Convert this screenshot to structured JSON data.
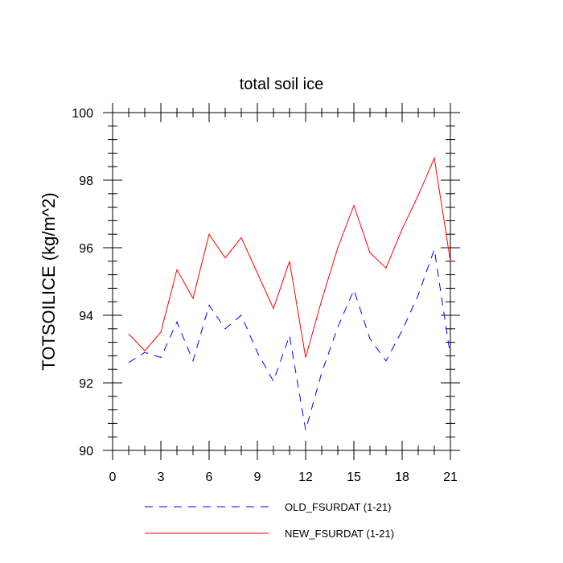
{
  "chart_data": {
    "type": "line",
    "title": "total soil ice",
    "xlabel": "",
    "ylabel": "TOTSOILICE  (kg/m^2)",
    "xlim": [
      0,
      21
    ],
    "ylim": [
      90,
      100
    ],
    "x_ticks": [
      0,
      3,
      6,
      9,
      12,
      15,
      18,
      21
    ],
    "y_ticks": [
      90,
      92,
      94,
      96,
      98,
      100
    ],
    "grid": false,
    "legend_position": "bottom",
    "x": [
      1,
      2,
      3,
      4,
      5,
      6,
      7,
      8,
      9,
      10,
      11,
      12,
      13,
      14,
      15,
      16,
      17,
      18,
      19,
      20,
      21
    ],
    "series": [
      {
        "name": "OLD_FSURDAT (1-21)",
        "color": "#0000ff",
        "style": "dashed",
        "values": [
          92.6,
          92.9,
          92.75,
          93.8,
          92.65,
          94.3,
          93.6,
          94.0,
          92.9,
          92.05,
          93.4,
          90.6,
          92.3,
          93.65,
          94.75,
          93.3,
          92.65,
          93.55,
          94.6,
          95.95,
          92.8
        ]
      },
      {
        "name": "NEW_FSURDAT (1-21)",
        "color": "#ff0000",
        "style": "solid",
        "values": [
          93.45,
          92.95,
          93.5,
          95.35,
          94.5,
          96.4,
          95.7,
          96.3,
          95.25,
          94.2,
          95.6,
          92.75,
          94.45,
          96.0,
          97.25,
          95.85,
          95.4,
          96.55,
          97.55,
          98.65,
          95.6
        ]
      }
    ]
  }
}
